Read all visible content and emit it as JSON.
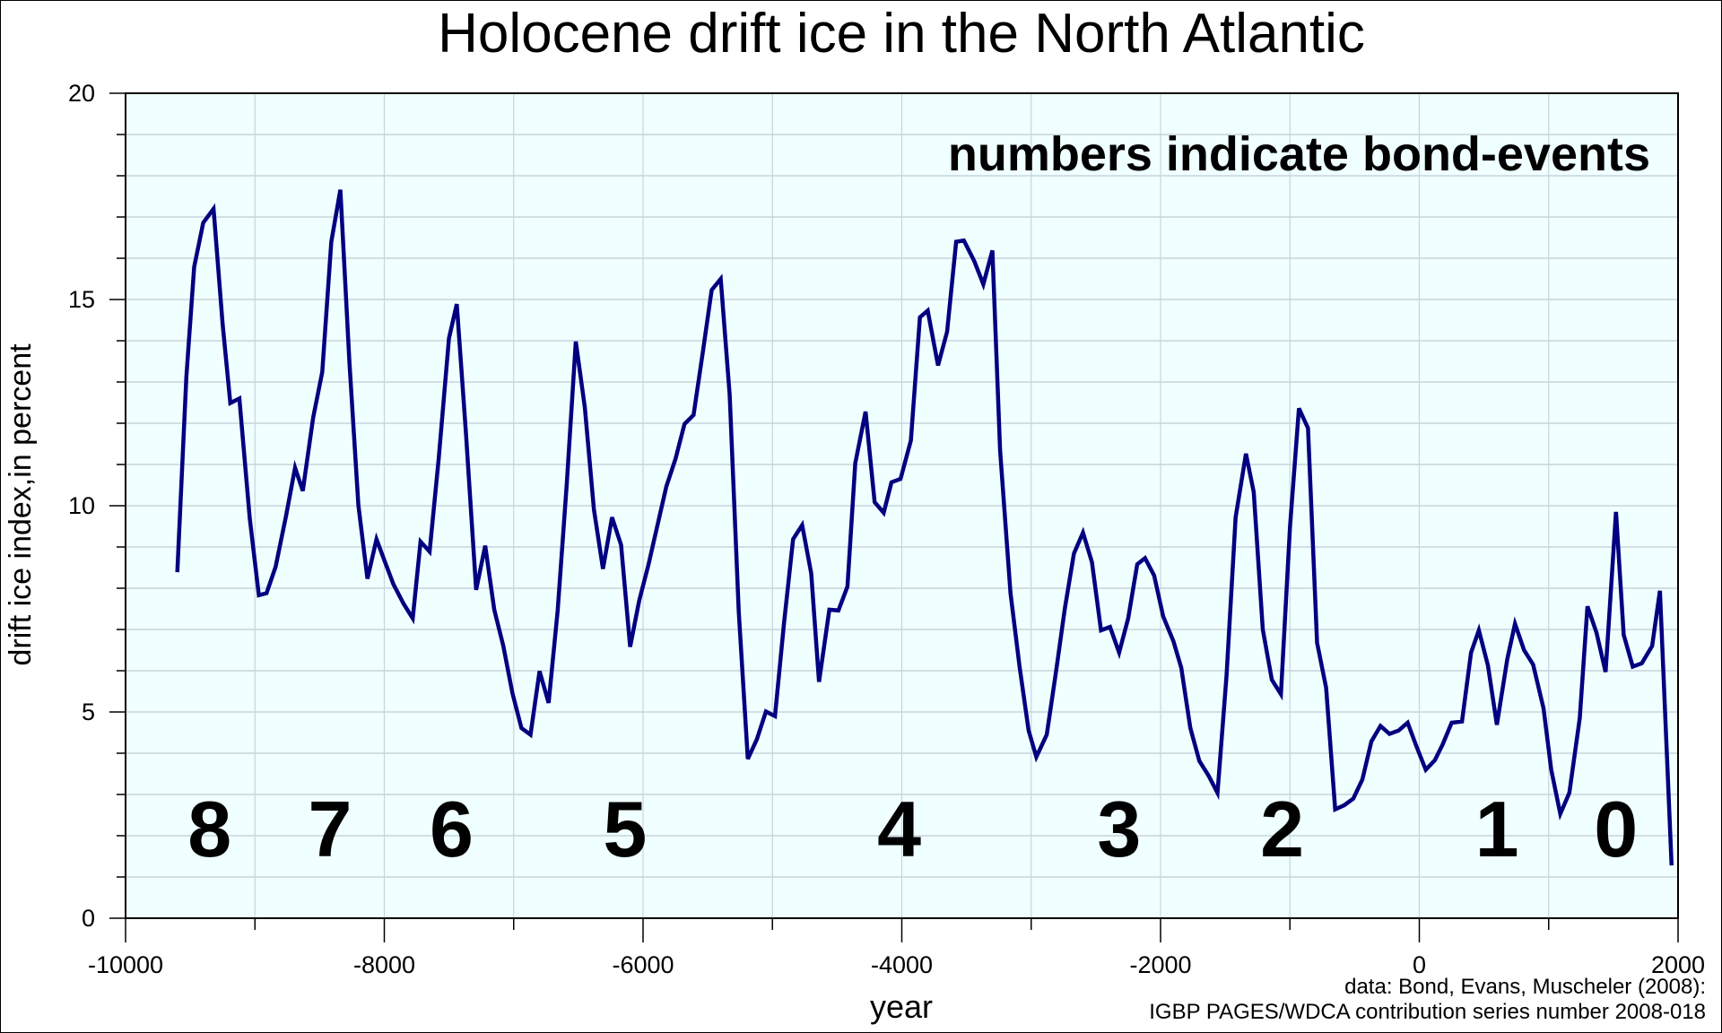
{
  "chart_data": {
    "type": "line",
    "title": "Holocene drift ice in the North Atlantic",
    "xlabel": "year",
    "ylabel": "drift ice index,in percent",
    "xlim": [
      -10000,
      2000
    ],
    "ylim": [
      0,
      20
    ],
    "x_ticks": [
      -10000,
      -8000,
      -6000,
      -4000,
      -2000,
      0,
      2000
    ],
    "y_ticks": [
      0,
      5,
      10,
      15,
      20
    ],
    "grid": true,
    "colors": {
      "line": "#000080",
      "plot_background": "#f0ffff",
      "grid": "#c8d4dc"
    },
    "annotation": "numbers indicate bond-events",
    "credit": [
      "data: Bond, Evans, Muscheler (2008):",
      "IGBP PAGES/WDCA contribution series number 2008-018"
    ],
    "bond_events": [
      {
        "label": "8",
        "x": -9350
      },
      {
        "label": "7",
        "x": -8420
      },
      {
        "label": "6",
        "x": -7480
      },
      {
        "label": "5",
        "x": -6140
      },
      {
        "label": "4",
        "x": -4020
      },
      {
        "label": "3",
        "x": -2320
      },
      {
        "label": "2",
        "x": -1060
      },
      {
        "label": "1",
        "x": 600
      },
      {
        "label": "0",
        "x": 1520
      }
    ],
    "series": [
      {
        "x": [
          -9600,
          -9530,
          -9470,
          -9400,
          -9320,
          -9250,
          -9190,
          -9120,
          -9040,
          -8970,
          -8910,
          -8840,
          -8760,
          -8690,
          -8630,
          -8550,
          -8480,
          -8410,
          -8340,
          -8270,
          -8200,
          -8130,
          -8060,
          -8000,
          -7930,
          -7850,
          -7780,
          -7720,
          -7650,
          -7580,
          -7500,
          -7440,
          -7370,
          -7290,
          -7220,
          -7150,
          -7080,
          -7010,
          -6940,
          -6870,
          -6800,
          -6730,
          -6660,
          -6590,
          -6520,
          -6450,
          -6380,
          -6310,
          -6240,
          -6170,
          -6100,
          -6030,
          -5960,
          -5890,
          -5820,
          -5750,
          -5680,
          -5610,
          -5540,
          -5470,
          -5400,
          -5330,
          -5260,
          -5190,
          -5120,
          -5050,
          -4980,
          -4910,
          -4840,
          -4770,
          -4700,
          -4640,
          -4560,
          -4490,
          -4420,
          -4360,
          -4280,
          -4210,
          -4140,
          -4080,
          -4010,
          -3930,
          -3860,
          -3800,
          -3720,
          -3650,
          -3580,
          -3520,
          -3440,
          -3370,
          -3300,
          -3240,
          -3160,
          -3090,
          -3020,
          -2960,
          -2880,
          -2810,
          -2740,
          -2670,
          -2600,
          -2530,
          -2460,
          -2390,
          -2320,
          -2250,
          -2180,
          -2120,
          -2050,
          -1980,
          -1900,
          -1840,
          -1770,
          -1700,
          -1630,
          -1560,
          -1490,
          -1420,
          -1340,
          -1280,
          -1210,
          -1140,
          -1070,
          -1000,
          -930,
          -860,
          -790,
          -720,
          -650,
          -580,
          -510,
          -440,
          -370,
          -300,
          -230,
          -160,
          -90,
          -20,
          50,
          120,
          180,
          250,
          330,
          400,
          460,
          530,
          600,
          680,
          740,
          810,
          880,
          960,
          1020,
          1090,
          1160,
          1240,
          1300,
          1370,
          1440,
          1520,
          1580,
          1650,
          1720,
          1800,
          1860,
          1950
        ],
        "y": [
          8.39,
          13.13,
          15.79,
          16.86,
          17.2,
          14.41,
          12.49,
          12.6,
          9.69,
          7.83,
          7.88,
          8.52,
          9.75,
          10.92,
          10.36,
          12.14,
          13.24,
          16.4,
          17.66,
          13.48,
          10.01,
          8.23,
          9.19,
          8.68,
          8.1,
          7.62,
          7.27,
          9.13,
          8.89,
          11.13,
          14.06,
          14.89,
          11.8,
          7.96,
          9.03,
          7.48,
          6.6,
          5.46,
          4.61,
          4.45,
          5.99,
          5.22,
          7.46,
          10.52,
          13.98,
          12.38,
          9.91,
          8.47,
          9.72,
          9.05,
          6.58,
          7.7,
          8.55,
          9.51,
          10.47,
          11.13,
          11.98,
          12.2,
          13.69,
          15.23,
          15.5,
          12.68,
          7.43,
          3.86,
          4.34,
          5.01,
          4.9,
          7.16,
          9.19,
          9.53,
          8.36,
          5.73,
          7.48,
          7.46,
          8.04,
          11.03,
          12.28,
          10.09,
          9.83,
          10.57,
          10.65,
          11.58,
          14.57,
          14.73,
          13.4,
          14.22,
          16.4,
          16.43,
          15.93,
          15.37,
          16.19,
          11.34,
          7.88,
          6.1,
          4.55,
          3.91,
          4.45,
          5.94,
          7.51,
          8.84,
          9.35,
          8.63,
          6.98,
          7.06,
          6.44,
          7.27,
          8.58,
          8.73,
          8.31,
          7.32,
          6.71,
          6.07,
          4.61,
          3.81,
          3.46,
          3.04,
          5.89,
          9.72,
          11.26,
          10.33,
          7.0,
          5.78,
          5.43,
          9.48,
          12.36,
          11.88,
          6.68,
          5.59,
          2.64,
          2.74,
          2.9,
          3.36,
          4.29,
          4.66,
          4.47,
          4.55,
          4.74,
          4.15,
          3.6,
          3.83,
          4.21,
          4.74,
          4.77,
          6.44,
          6.98,
          6.13,
          4.69,
          6.28,
          7.14,
          6.5,
          6.15,
          5.09,
          3.6,
          2.53,
          3.04,
          4.85,
          7.56,
          6.92,
          5.97,
          9.85,
          6.87,
          6.1,
          6.18,
          6.6,
          7.94,
          1.28
        ]
      }
    ]
  }
}
